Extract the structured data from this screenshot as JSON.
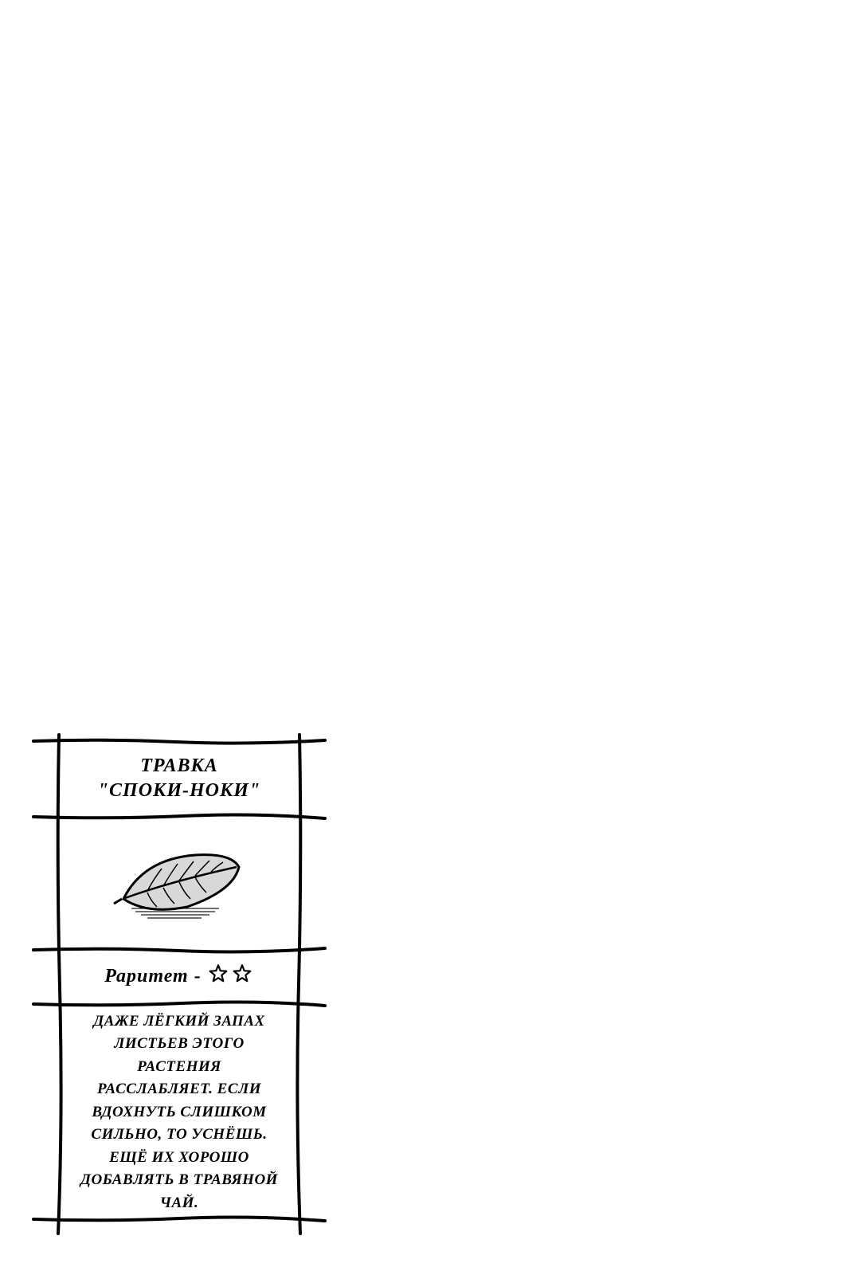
{
  "card": {
    "title_line1": "Травка",
    "title_line2": "\"Споки-ноки\"",
    "rarity_label": "Раритет -",
    "rarity_stars": 2,
    "description": "Даже лёгкий запах листьев этого растения расслабляет. Если вдохнуть слишком сильно, то уснёшь. Ещё их хорошо добавлять в травяной чай.",
    "colors": {
      "ink": "#000000",
      "background": "#ffffff",
      "leaf_fill": "#d0d0d0"
    },
    "style": {
      "line_stroke_width": 4,
      "title_fontsize": 24,
      "rarity_fontsize": 24,
      "desc_fontsize": 19,
      "font_style": "italic",
      "font_weight": "bold"
    },
    "icon": "leaf-icon"
  }
}
